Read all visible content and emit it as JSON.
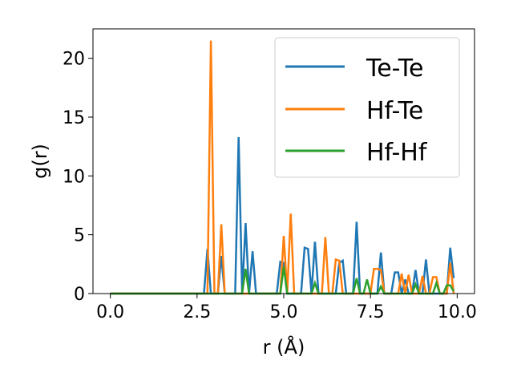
{
  "chart_data": {
    "type": "line",
    "title": "",
    "xlabel": "r (Å)",
    "ylabel": "g(r)",
    "xlim": [
      -0.5,
      10.5
    ],
    "ylim": [
      0,
      22.5
    ],
    "x_ticks": [
      "0.0",
      "2.5",
      "5.0",
      "7.5",
      "10.0"
    ],
    "y_ticks": [
      "0",
      "5",
      "10",
      "15",
      "20"
    ],
    "grid": false,
    "legend_position": "top-right",
    "series": [
      {
        "name": "Te-Te",
        "color": "#1f77b4",
        "x": [
          0.0,
          2.6,
          2.7,
          2.8,
          2.9,
          3.0,
          3.1,
          3.2,
          3.3,
          3.4,
          3.5,
          3.6,
          3.7,
          3.8,
          3.9,
          4.0,
          4.1,
          4.2,
          4.3,
          4.4,
          4.5,
          4.6,
          4.7,
          4.8,
          4.9,
          5.0,
          5.1,
          5.2,
          5.3,
          5.4,
          5.5,
          5.6,
          5.7,
          5.8,
          5.9,
          6.0,
          6.1,
          6.2,
          6.3,
          6.4,
          6.5,
          6.6,
          6.7,
          6.8,
          6.9,
          7.0,
          7.1,
          7.2,
          7.3,
          7.4,
          7.5,
          7.6,
          7.7,
          7.8,
          7.9,
          8.0,
          8.1,
          8.2,
          8.3,
          8.4,
          8.5,
          8.6,
          8.7,
          8.8,
          8.9,
          9.0,
          9.1,
          9.2,
          9.3,
          9.4,
          9.5,
          9.6,
          9.7,
          9.8,
          9.9
        ],
        "y": [
          0,
          0,
          0,
          3.8,
          0,
          0,
          0,
          3.2,
          0,
          0,
          0,
          0,
          13.3,
          0,
          6.0,
          0,
          3.6,
          0,
          0,
          0,
          0,
          0,
          0,
          0,
          2.7,
          2.6,
          0,
          0,
          0,
          0,
          0,
          3.9,
          3.8,
          0,
          4.4,
          0,
          0,
          0,
          0,
          0,
          0,
          2.6,
          2.8,
          0,
          0,
          0,
          6.1,
          0,
          0,
          0,
          0,
          0,
          0,
          3.5,
          0,
          0,
          0,
          1.8,
          1.8,
          0,
          1.2,
          0,
          0,
          2.0,
          0,
          0,
          2.9,
          0,
          0,
          0,
          0,
          0,
          0,
          3.9,
          1.3
        ]
      },
      {
        "name": "Hf-Te",
        "color": "#ff7f0e",
        "x": [
          0.0,
          2.7,
          2.8,
          2.9,
          3.0,
          3.1,
          3.2,
          3.3,
          3.4,
          3.5,
          4.5,
          4.9,
          5.0,
          5.1,
          5.2,
          5.3,
          5.4,
          5.5,
          5.6,
          5.7,
          5.8,
          5.9,
          6.0,
          6.1,
          6.2,
          6.3,
          6.4,
          6.5,
          6.6,
          6.7,
          6.8,
          6.9,
          7.0,
          7.1,
          7.2,
          7.3,
          7.4,
          7.5,
          7.6,
          7.7,
          7.8,
          7.9,
          8.0,
          8.1,
          8.2,
          8.3,
          8.4,
          8.5,
          8.6,
          8.7,
          8.8,
          8.9,
          9.0,
          9.1,
          9.2,
          9.3,
          9.4,
          9.5,
          9.6,
          9.7,
          9.8,
          9.9
        ],
        "y": [
          0,
          0,
          0,
          21.5,
          0,
          0,
          5.9,
          0,
          0,
          0,
          0,
          0,
          4.9,
          0,
          6.8,
          0,
          0,
          0,
          0,
          0,
          0,
          0,
          0,
          0,
          4.8,
          0,
          0,
          2.9,
          2.8,
          0,
          0,
          0,
          0,
          0,
          0,
          0,
          0,
          0,
          2.1,
          2.1,
          2.0,
          0,
          0,
          0,
          0,
          0,
          1.7,
          0,
          1.6,
          0,
          0,
          0,
          1.5,
          0,
          0,
          1.4,
          1.4,
          0,
          0,
          0,
          2.6,
          0
        ]
      },
      {
        "name": "Hf-Hf",
        "color": "#2ca02c",
        "x": [
          0.0,
          3.7,
          3.8,
          3.9,
          4.0,
          4.1,
          4.7,
          4.8,
          4.9,
          5.0,
          5.1,
          5.6,
          5.7,
          5.8,
          5.9,
          6.0,
          6.1,
          6.8,
          6.9,
          7.0,
          7.1,
          7.2,
          7.3,
          7.4,
          7.5,
          7.6,
          7.7,
          7.8,
          7.9,
          8.5,
          8.6,
          8.7,
          8.8,
          8.9,
          9.2,
          9.3,
          9.4,
          9.5,
          9.6,
          9.7,
          9.8,
          9.9
        ],
        "y": [
          0,
          0,
          0,
          2.1,
          0,
          0,
          0,
          0,
          0,
          2.3,
          0,
          0,
          0,
          0,
          0.9,
          0,
          0,
          0,
          0,
          0,
          1.3,
          0,
          0,
          1.2,
          0,
          0,
          0,
          0.6,
          0,
          0,
          0,
          0,
          0.8,
          0,
          0,
          0,
          0.9,
          0,
          0,
          0.7,
          0.7,
          0.2
        ]
      }
    ]
  }
}
